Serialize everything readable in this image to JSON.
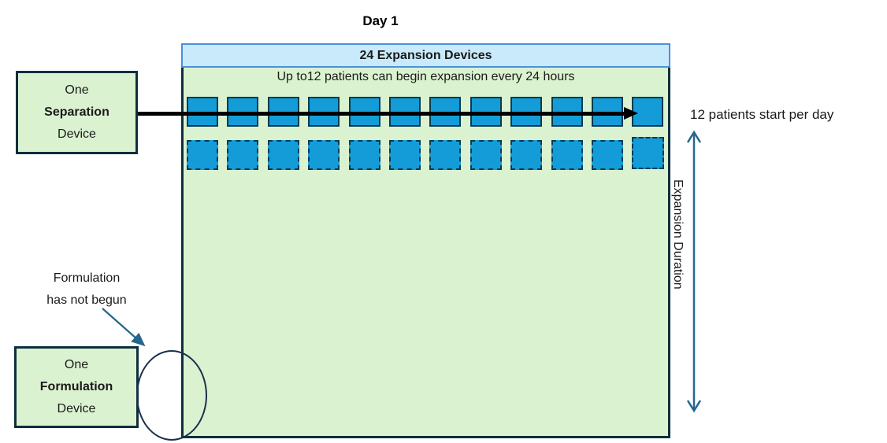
{
  "title": "Day 1",
  "colors": {
    "green-fill": "#DAF2D0",
    "dark-border": "#0F2E3D",
    "header-fill": "#C9EAFB",
    "header-border": "#4A90D9",
    "square-fill": "#149CD9",
    "square-border": "#083B50",
    "black-arrow": "#000000",
    "teal": "#25678C",
    "circle-border": "#1B2F4E",
    "text": "#1A1A1A"
  },
  "expansion_area": {
    "header": "24 Expansion Devices",
    "subtitle": "Up to12 patients can begin expansion every 24 hours",
    "solid_squares": 12,
    "dashed_squares": 12
  },
  "separation_device": {
    "line1": "One",
    "line2": "Separation",
    "line3": "Device"
  },
  "formulation_device": {
    "line1": "One",
    "line2": "Formulation",
    "line3": "Device"
  },
  "annotations": {
    "formulation_note": {
      "line1": "Formulation",
      "line2": "has not begun"
    },
    "patients_per_day": "12 patients start per day",
    "expansion_duration": "Expansion Duration"
  }
}
